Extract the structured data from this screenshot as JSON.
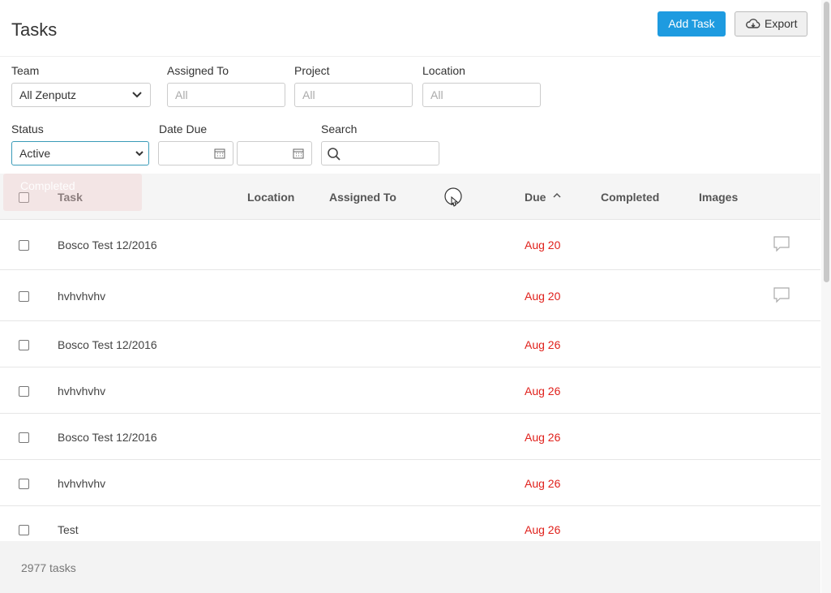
{
  "header": {
    "title": "Tasks",
    "add_button": "Add Task",
    "export_button": "Export"
  },
  "filters": {
    "team": {
      "label": "Team",
      "value": "All Zenputz"
    },
    "assigned_to": {
      "label": "Assigned To",
      "placeholder": "All"
    },
    "project": {
      "label": "Project",
      "placeholder": "All"
    },
    "location": {
      "label": "Location",
      "placeholder": "All"
    },
    "status": {
      "label": "Status",
      "value": "Active",
      "dropdown_option": "Completed"
    },
    "date_due": {
      "label": "Date Due"
    },
    "search": {
      "label": "Search"
    }
  },
  "table": {
    "columns": [
      "Task",
      "Location",
      "Assigned To",
      "Due",
      "Completed",
      "Images"
    ],
    "rows": [
      {
        "task": "Bosco Test 12/2016",
        "due": "Aug 20",
        "has_comment": true
      },
      {
        "task": "hvhvhvhv",
        "due": "Aug 20",
        "has_comment": true
      },
      {
        "task": "Bosco Test 12/2016",
        "due": "Aug 26",
        "has_comment": false
      },
      {
        "task": "hvhvhvhv",
        "due": "Aug 26",
        "has_comment": false
      },
      {
        "task": "Bosco Test 12/2016",
        "due": "Aug 26",
        "has_comment": false
      },
      {
        "task": "hvhvhvhv",
        "due": "Aug 26",
        "has_comment": false
      },
      {
        "task": "Test",
        "due": "Aug 26",
        "has_comment": false
      }
    ]
  },
  "footer": {
    "count": "2977 tasks"
  }
}
